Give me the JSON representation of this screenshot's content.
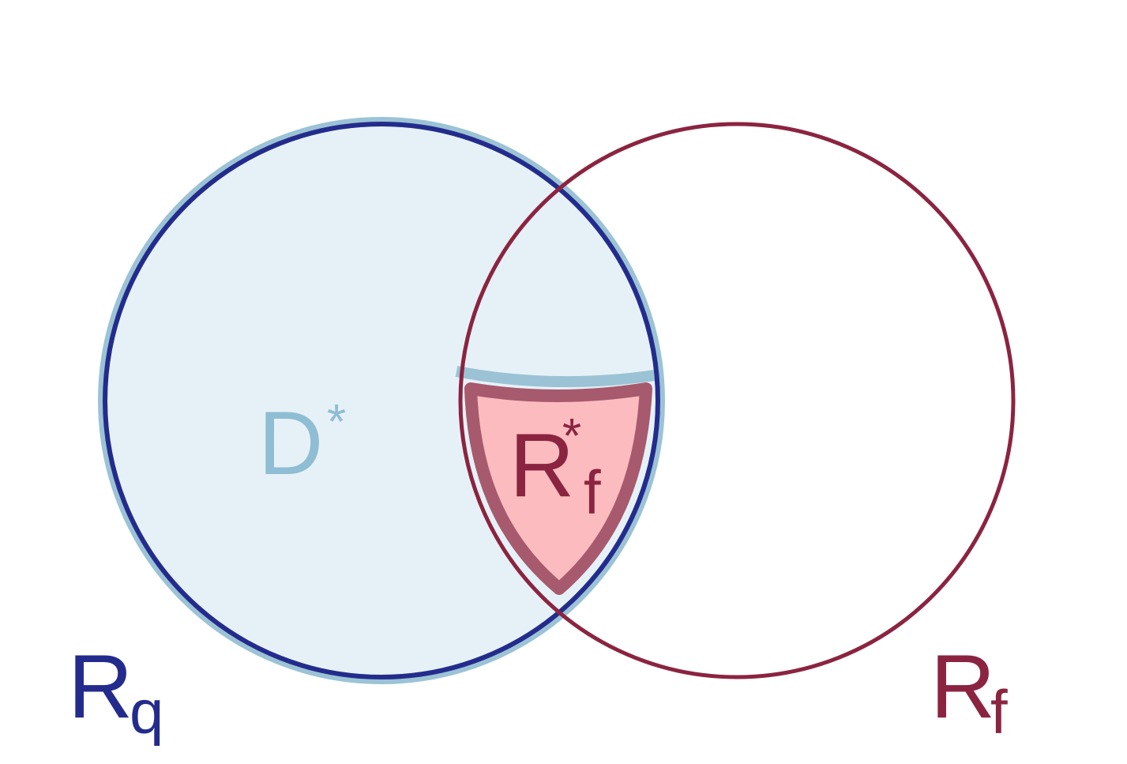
{
  "colors": {
    "background": "#ffffff",
    "rq_stroke": "#232c8c",
    "rf_stroke": "#8b2440",
    "d_star_fill": "#e6f1f7",
    "d_star_stroke": "#9bc3d5",
    "d_star_text": "#8fbdd3",
    "rf_star_fill": "#fcbcbf",
    "rf_star_stroke": "#a75a6d",
    "rf_star_text": "#8b2440"
  },
  "labels": {
    "rq": {
      "main": "R",
      "sub": "q"
    },
    "rf": {
      "main": "R",
      "sub": "f"
    },
    "d_star": {
      "main": "D",
      "sup": "*"
    },
    "rf_star": {
      "main": "R",
      "sup": "*",
      "sub": "f"
    }
  }
}
